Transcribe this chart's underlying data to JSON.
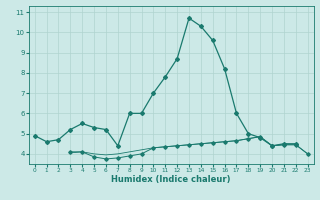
{
  "xlabel": "Humidex (Indice chaleur)",
  "x": [
    0,
    1,
    2,
    3,
    4,
    5,
    6,
    7,
    8,
    9,
    10,
    11,
    12,
    13,
    14,
    15,
    16,
    17,
    18,
    19,
    20,
    21,
    22,
    23
  ],
  "line1": [
    4.9,
    4.6,
    4.7,
    5.2,
    5.5,
    5.3,
    5.2,
    4.4,
    6.0,
    6.0,
    7.0,
    7.8,
    8.7,
    10.7,
    10.3,
    9.6,
    8.2,
    6.0,
    5.0,
    4.8,
    4.4,
    4.5,
    4.5,
    null
  ],
  "line2": [
    null,
    null,
    null,
    4.1,
    4.1,
    3.85,
    3.75,
    3.8,
    3.9,
    4.0,
    4.3,
    4.35,
    4.4,
    4.45,
    4.5,
    4.55,
    4.6,
    4.65,
    4.75,
    4.85,
    4.4,
    4.45,
    4.45,
    4.0
  ],
  "line3": [
    null,
    null,
    null,
    4.05,
    4.1,
    4.0,
    3.95,
    4.0,
    4.1,
    4.2,
    4.3,
    4.35,
    4.4,
    4.45,
    4.5,
    4.55,
    4.6,
    4.65,
    4.75,
    4.85,
    4.4,
    4.45,
    4.45,
    4.0
  ],
  "line_color": "#1a7a6e",
  "bg_color": "#cce9e7",
  "grid_color": "#b0d4d0",
  "ylim": [
    3.5,
    11.3
  ],
  "xlim": [
    -0.5,
    23.5
  ],
  "yticks": [
    4,
    5,
    6,
    7,
    8,
    9,
    10,
    11
  ],
  "xticks": [
    0,
    1,
    2,
    3,
    4,
    5,
    6,
    7,
    8,
    9,
    10,
    11,
    12,
    13,
    14,
    15,
    16,
    17,
    18,
    19,
    20,
    21,
    22,
    23
  ]
}
